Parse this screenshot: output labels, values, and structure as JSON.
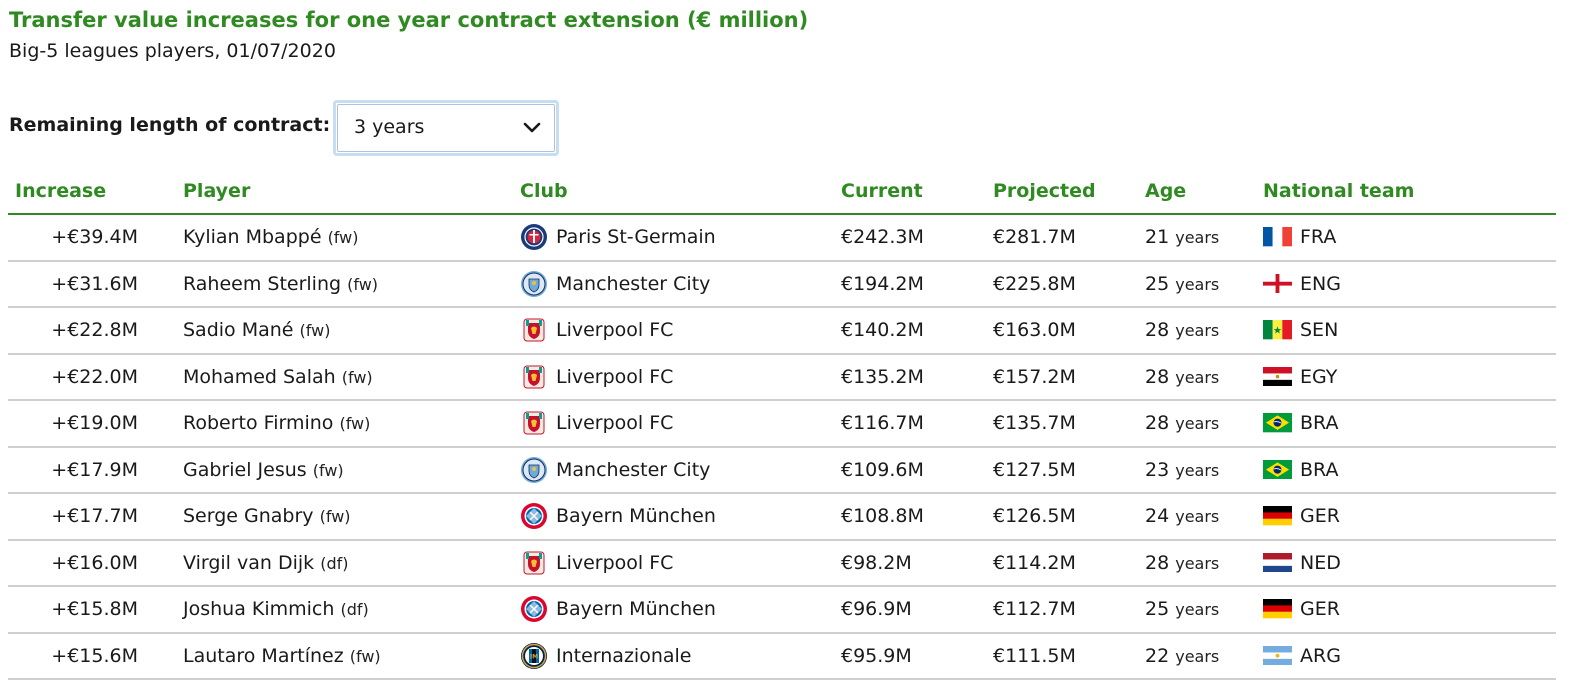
{
  "header": {
    "title": "Transfer value increases for one year contract extension (€ million)",
    "subtitle": "Big-5 leagues players, 01/07/2020"
  },
  "filter": {
    "label": "Remaining length of contract:",
    "selected": "3 years"
  },
  "table": {
    "columns": [
      "Increase",
      "Player",
      "Club",
      "Current",
      "Projected",
      "Age",
      "National team"
    ],
    "age_unit": "years",
    "rows": [
      {
        "increase": "+€39.4M",
        "player": "Kylian Mbappé",
        "pos": "(fw)",
        "club": "Paris St-Germain",
        "crest": "psg-crest-icon",
        "current": "€242.3M",
        "projected": "€281.7M",
        "age": "21",
        "nation": "FRA",
        "flag": "france-flag-icon"
      },
      {
        "increase": "+€31.6M",
        "player": "Raheem Sterling",
        "pos": "(fw)",
        "club": "Manchester City",
        "crest": "man-city-crest-icon",
        "current": "€194.2M",
        "projected": "€225.8M",
        "age": "25",
        "nation": "ENG",
        "flag": "england-flag-icon"
      },
      {
        "increase": "+€22.8M",
        "player": "Sadio Mané",
        "pos": "(fw)",
        "club": "Liverpool FC",
        "crest": "liverpool-crest-icon",
        "current": "€140.2M",
        "projected": "€163.0M",
        "age": "28",
        "nation": "SEN",
        "flag": "senegal-flag-icon"
      },
      {
        "increase": "+€22.0M",
        "player": "Mohamed Salah",
        "pos": "(fw)",
        "club": "Liverpool FC",
        "crest": "liverpool-crest-icon",
        "current": "€135.2M",
        "projected": "€157.2M",
        "age": "28",
        "nation": "EGY",
        "flag": "egypt-flag-icon"
      },
      {
        "increase": "+€19.0M",
        "player": "Roberto Firmino",
        "pos": "(fw)",
        "club": "Liverpool FC",
        "crest": "liverpool-crest-icon",
        "current": "€116.7M",
        "projected": "€135.7M",
        "age": "28",
        "nation": "BRA",
        "flag": "brazil-flag-icon"
      },
      {
        "increase": "+€17.9M",
        "player": "Gabriel Jesus",
        "pos": "(fw)",
        "club": "Manchester City",
        "crest": "man-city-crest-icon",
        "current": "€109.6M",
        "projected": "€127.5M",
        "age": "23",
        "nation": "BRA",
        "flag": "brazil-flag-icon"
      },
      {
        "increase": "+€17.7M",
        "player": "Serge Gnabry",
        "pos": "(fw)",
        "club": "Bayern München",
        "crest": "bayern-crest-icon",
        "current": "€108.8M",
        "projected": "€126.5M",
        "age": "24",
        "nation": "GER",
        "flag": "germany-flag-icon"
      },
      {
        "increase": "+€16.0M",
        "player": "Virgil van Dijk",
        "pos": "(df)",
        "club": "Liverpool FC",
        "crest": "liverpool-crest-icon",
        "current": "€98.2M",
        "projected": "€114.2M",
        "age": "28",
        "nation": "NED",
        "flag": "netherlands-flag-icon"
      },
      {
        "increase": "+€15.8M",
        "player": "Joshua Kimmich",
        "pos": "(df)",
        "club": "Bayern München",
        "crest": "bayern-crest-icon",
        "current": "€96.9M",
        "projected": "€112.7M",
        "age": "25",
        "nation": "GER",
        "flag": "germany-flag-icon"
      },
      {
        "increase": "+€15.6M",
        "player": "Lautaro Martínez",
        "pos": "(fw)",
        "club": "Internazionale",
        "crest": "inter-crest-icon",
        "current": "€95.9M",
        "projected": "€111.5M",
        "age": "22",
        "nation": "ARG",
        "flag": "argentina-flag-icon"
      }
    ]
  },
  "colors": {
    "accent": "#2f8a21",
    "row_divider": "#cfcfcf",
    "select_border": "#c8dcf2"
  }
}
